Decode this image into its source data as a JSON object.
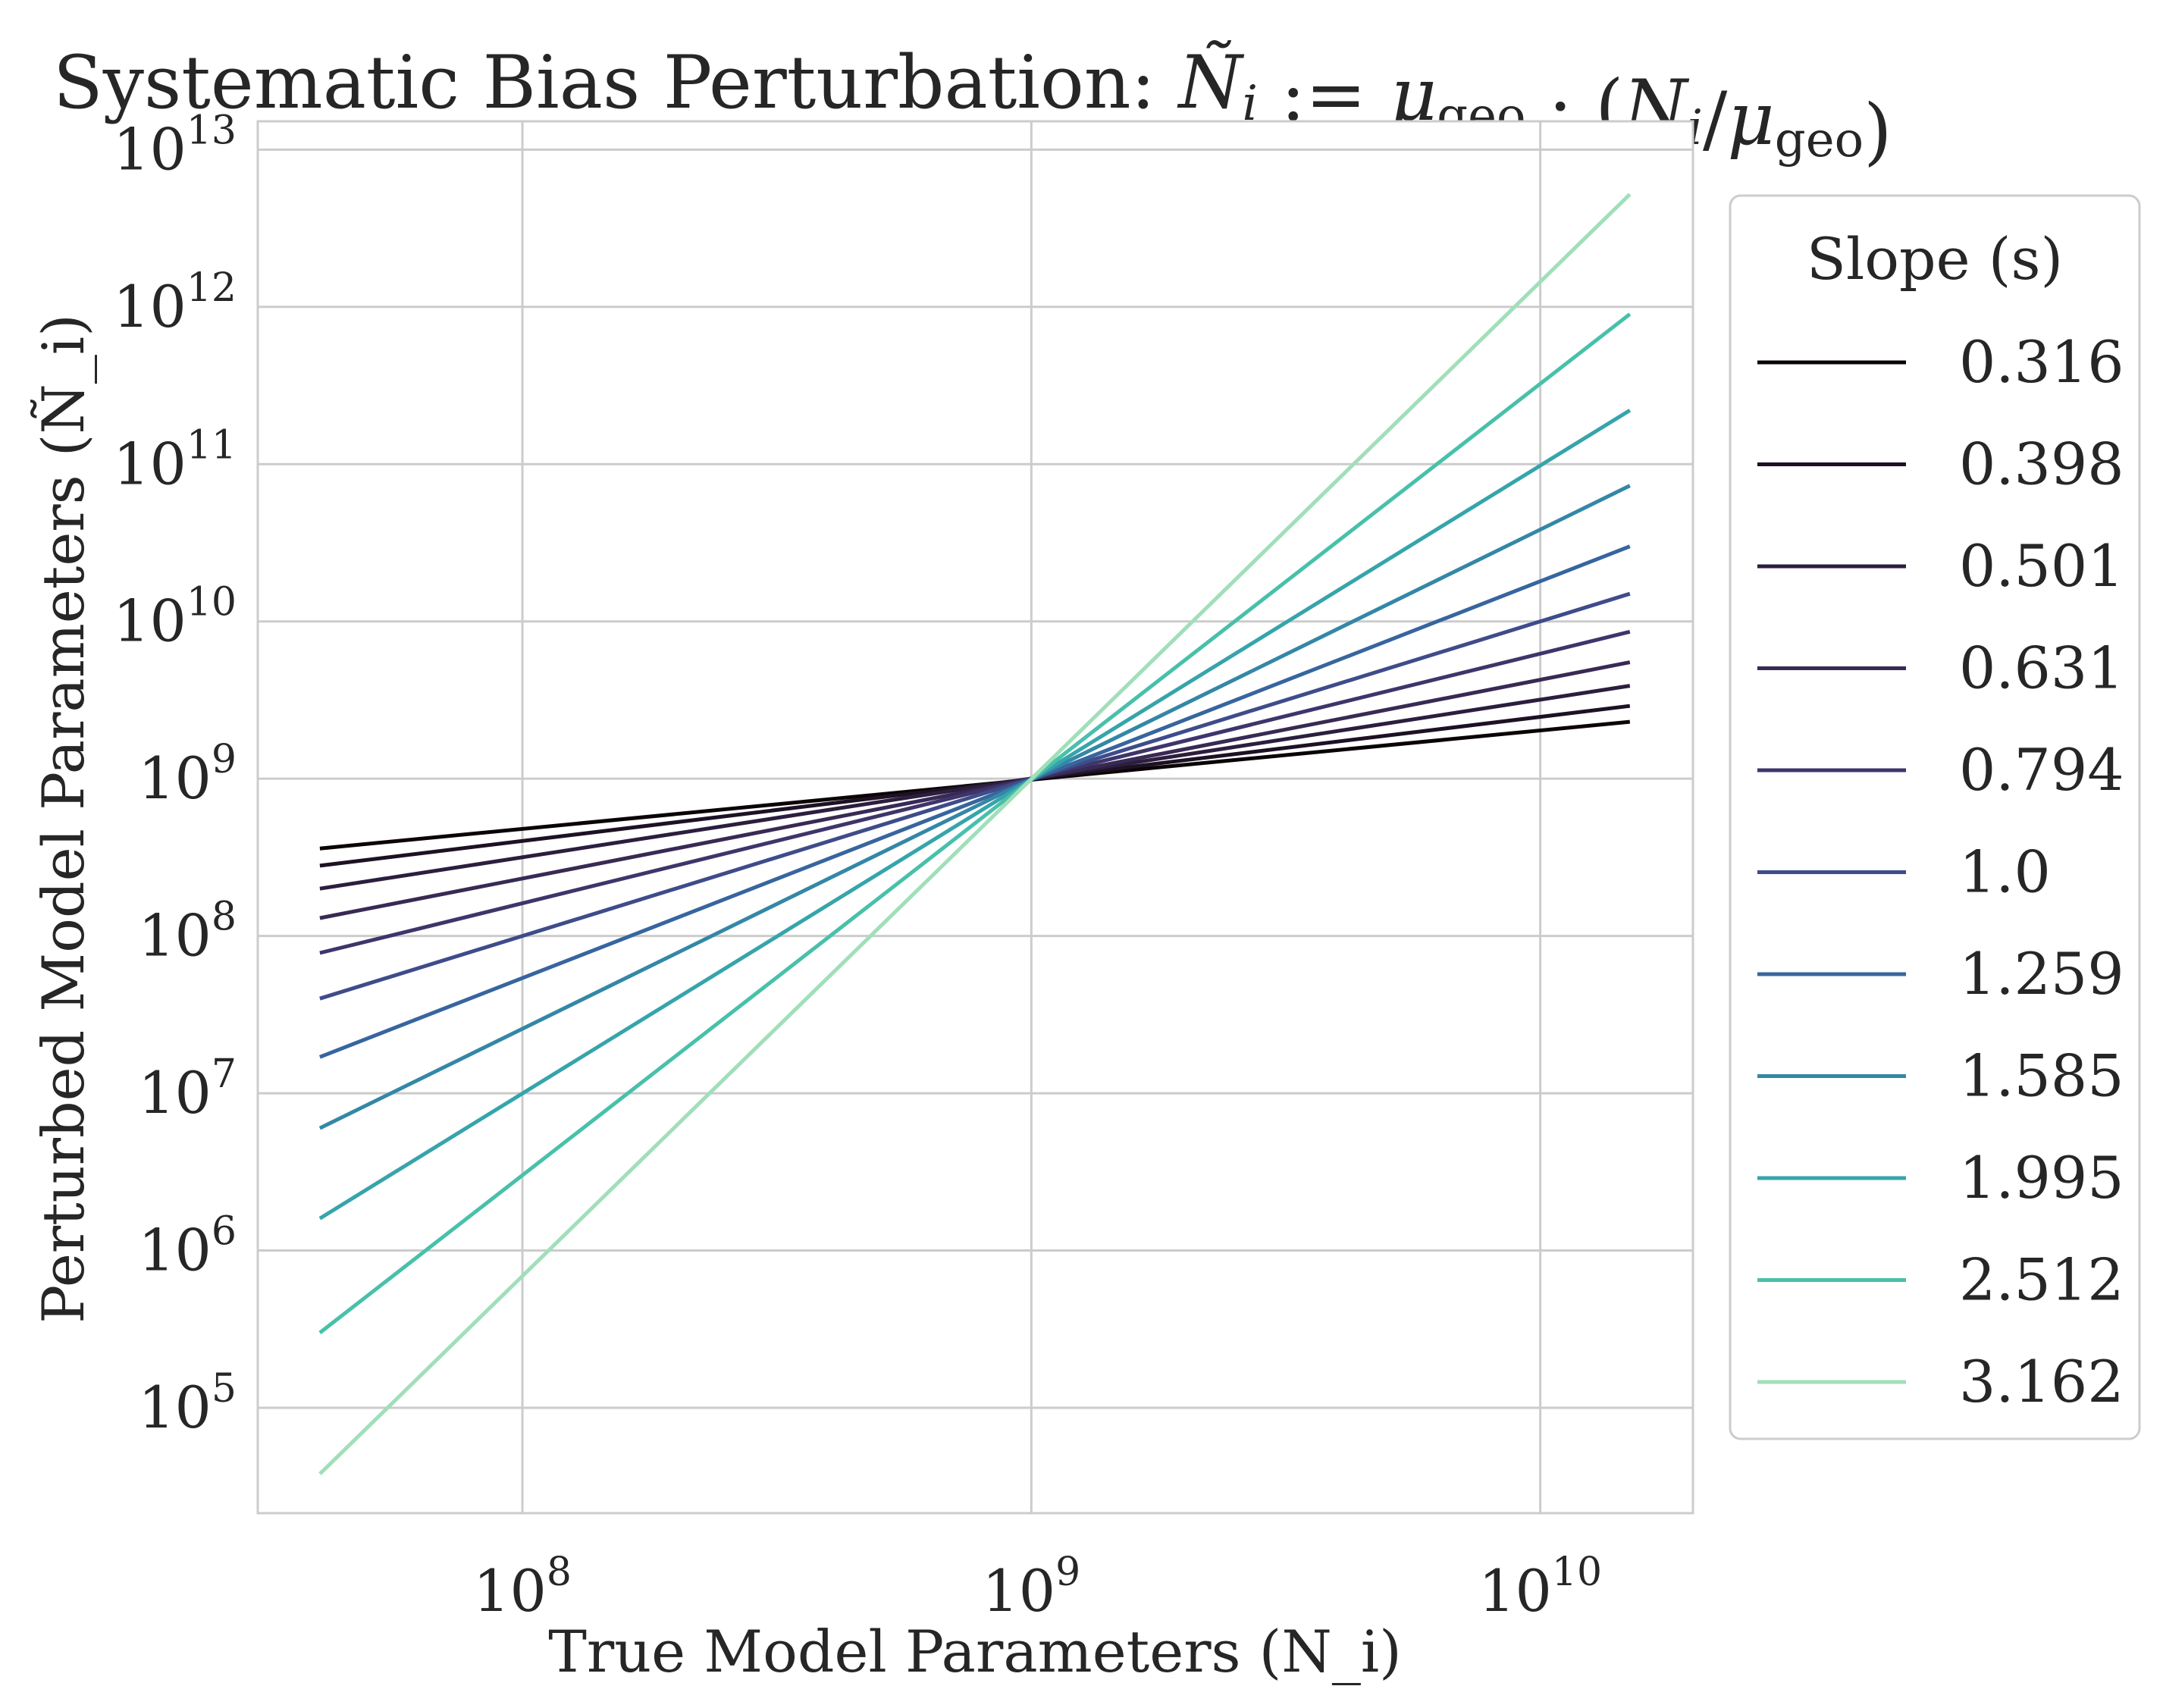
{
  "chart_data": {
    "type": "line",
    "title": "Systematic Bias Perturbation: Ñ_i := μ_geo · (N_i/μ_geo)",
    "xlabel": "True Model Parameters (N_i)",
    "ylabel": "Perturbed Model Parameters (Ñ_i)",
    "xscale": "log",
    "yscale": "log",
    "x_log10_range": [
      7.48,
      10.3
    ],
    "y_log10_range": [
      4.33,
      13.18
    ],
    "x_ticks": [
      {
        "base": "10",
        "exp": "8"
      },
      {
        "base": "10",
        "exp": "9"
      },
      {
        "base": "10",
        "exp": "10"
      }
    ],
    "x_tick_values": [
      100000000.0,
      1000000000.0,
      10000000000.0
    ],
    "y_ticks": [
      {
        "base": "10",
        "exp": "5"
      },
      {
        "base": "10",
        "exp": "6"
      },
      {
        "base": "10",
        "exp": "7"
      },
      {
        "base": "10",
        "exp": "8"
      },
      {
        "base": "10",
        "exp": "9"
      },
      {
        "base": "10",
        "exp": "10"
      },
      {
        "base": "10",
        "exp": "11"
      },
      {
        "base": "10",
        "exp": "12"
      },
      {
        "base": "10",
        "exp": "13"
      }
    ],
    "y_tick_values": [
      100000.0,
      1000000.0,
      10000000.0,
      100000000.0,
      1000000000.0,
      10000000000.0,
      100000000000.0,
      1000000000000.0,
      10000000000000.0
    ],
    "grid": true,
    "legend_placement": "outside-right",
    "legend_title": "Slope (s)",
    "pivot": {
      "x": 1000000000.0,
      "y": 1000000000.0
    },
    "x_range_of_lines": [
      40000000.0,
      15000000000.0
    ],
    "series": [
      {
        "name": "0.316",
        "slope": 0.316,
        "color": "#0b0405",
        "x": [
          40000000.0,
          15000000000.0
        ],
        "y": [
          360000000.0,
          2300000000.0
        ]
      },
      {
        "name": "0.398",
        "slope": 0.398,
        "color": "#1d1124",
        "x": [
          40000000.0,
          15000000000.0
        ],
        "y": [
          280000000.0,
          2900000000.0
        ]
      },
      {
        "name": "0.501",
        "slope": 0.501,
        "color": "#2c1e3e",
        "x": [
          40000000.0,
          15000000000.0
        ],
        "y": [
          200000000.0,
          3900000000.0
        ]
      },
      {
        "name": "0.631",
        "slope": 0.631,
        "color": "#382a54",
        "x": [
          40000000.0,
          15000000000.0
        ],
        "y": [
          130000000.0,
          5500000000.0
        ]
      },
      {
        "name": "0.794",
        "slope": 0.794,
        "color": "#3e356b",
        "x": [
          40000000.0,
          15000000000.0
        ],
        "y": [
          78000000.0,
          8600000000.0
        ]
      },
      {
        "name": "1.0",
        "slope": 1.0,
        "color": "#3e4c8a",
        "x": [
          40000000.0,
          15000000000.0
        ],
        "y": [
          40000000.0,
          15000000000.0
        ]
      },
      {
        "name": "1.259",
        "slope": 1.259,
        "color": "#37659e",
        "x": [
          40000000.0,
          15000000000.0
        ],
        "y": [
          17000000.0,
          30000000000.0
        ]
      },
      {
        "name": "1.585",
        "slope": 1.585,
        "color": "#3487a6",
        "x": [
          40000000.0,
          15000000000.0
        ],
        "y": [
          6000000.0,
          73000000000.0
        ]
      },
      {
        "name": "1.995",
        "slope": 1.995,
        "color": "#36a4ab",
        "x": [
          40000000.0,
          15000000000.0
        ],
        "y": [
          1600000.0,
          220000000000.0
        ]
      },
      {
        "name": "2.512",
        "slope": 2.512,
        "color": "#48c0aa",
        "x": [
          40000000.0,
          15000000000.0
        ],
        "y": [
          300000.0,
          900000000000.0
        ]
      },
      {
        "name": "3.162",
        "slope": 3.162,
        "color": "#a0dfb9",
        "x": [
          40000000.0,
          15000000000.0
        ],
        "y": [
          38000.0,
          5200000000000.0
        ]
      }
    ]
  }
}
